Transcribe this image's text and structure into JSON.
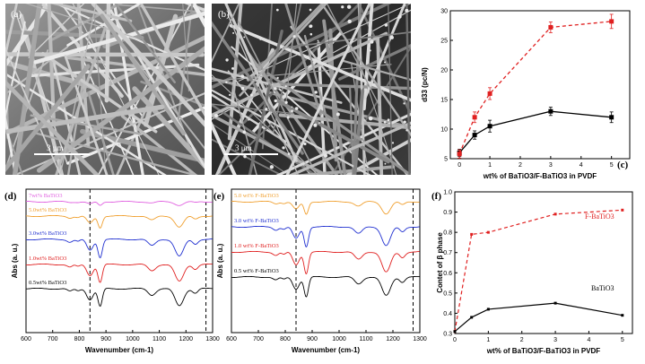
{
  "panels": {
    "a": {
      "label": "(a)",
      "scale_bar": "3 μm"
    },
    "b": {
      "label": "(b)",
      "scale_bar": "3 μm"
    },
    "c": {
      "label": "(c)"
    },
    "d": {
      "label": "(d)"
    },
    "e": {
      "label": "(e)"
    },
    "f": {
      "label": "(f)"
    }
  },
  "chart_data": [
    {
      "id": "c",
      "type": "line",
      "xlabel": "wt% of BaTiO3/F-BaTiO3 in PVDF",
      "ylabel": "d33 (pc/N)",
      "xlim": [
        -0.3,
        5.6
      ],
      "ylim": [
        5,
        30
      ],
      "xticks": [
        0,
        1,
        2,
        3,
        4,
        5
      ],
      "yticks": [
        5,
        10,
        15,
        20,
        25,
        30
      ],
      "series": [
        {
          "color": "#000000",
          "dash": "solid",
          "marker": "square",
          "x": [
            0,
            0.5,
            1,
            3,
            5
          ],
          "y": [
            6,
            9,
            10.5,
            13,
            12
          ],
          "err": [
            0.6,
            0.7,
            1.0,
            0.7,
            0.9
          ]
        },
        {
          "color": "#e02020",
          "dash": "dashed",
          "marker": "square",
          "x": [
            0,
            0.5,
            1,
            3,
            5
          ],
          "y": [
            5.8,
            12,
            16,
            27.2,
            28.2
          ],
          "err": [
            0.7,
            0.9,
            1.0,
            0.9,
            1.2
          ]
        }
      ]
    },
    {
      "id": "d",
      "type": "line",
      "xlabel": "Wavenumber (cm-1)",
      "ylabel": "Abs (a. u.)",
      "xlim": [
        600,
        1300
      ],
      "xticks": [
        600,
        700,
        800,
        900,
        1000,
        1100,
        1200,
        1300
      ],
      "vlines": [
        840,
        1275
      ],
      "series": [
        {
          "name": "7wt% BaTiO3",
          "color": "#e060e0"
        },
        {
          "name": "5.0wt% BaTiO3",
          "color": "#f0a030"
        },
        {
          "name": "3.0wt% BaTiO3",
          "color": "#2030d0"
        },
        {
          "name": "1.0wt% BaTiO3",
          "color": "#e02020"
        },
        {
          "name": "0.5wt% BaTiO3",
          "color": "#000000"
        }
      ]
    },
    {
      "id": "e",
      "type": "line",
      "xlabel": "Wavenumber (cm-1)",
      "ylabel": "Abs (a. u.)",
      "xlim": [
        600,
        1300
      ],
      "xticks": [
        600,
        700,
        800,
        900,
        1000,
        1100,
        1200,
        1300
      ],
      "vlines": [
        840,
        1275
      ],
      "series": [
        {
          "name": "5.0 wt% F-BaTiO3",
          "color": "#f0a030"
        },
        {
          "name": "3.0 wt% F-BaTiO3",
          "color": "#2030d0"
        },
        {
          "name": "1.0 wt% F-BaTiO3",
          "color": "#e02020"
        },
        {
          "name": "0.5 wt% F-BaTiO3",
          "color": "#000000"
        }
      ]
    },
    {
      "id": "f",
      "type": "line",
      "xlabel": "wt% of BaTiO3/F-BaTiO3 in PVDF",
      "ylabel": "Contet of β phase",
      "xlim": [
        0,
        5.3
      ],
      "ylim": [
        0.3,
        1.0
      ],
      "xticks": [
        0,
        1,
        2,
        3,
        4,
        5
      ],
      "yticks": [
        0.3,
        0.4,
        0.5,
        0.6,
        0.7,
        0.8,
        0.9,
        1.0
      ],
      "series": [
        {
          "name": "F-BaTiO3",
          "color": "#e02020",
          "dash": "dashed",
          "x": [
            0,
            0.5,
            1,
            3,
            5
          ],
          "y": [
            0.31,
            0.79,
            0.8,
            0.89,
            0.91
          ]
        },
        {
          "name": "BaTiO3",
          "color": "#000000",
          "dash": "solid",
          "x": [
            0,
            0.5,
            1,
            3,
            5
          ],
          "y": [
            0.31,
            0.38,
            0.42,
            0.45,
            0.39
          ]
        }
      ]
    }
  ]
}
